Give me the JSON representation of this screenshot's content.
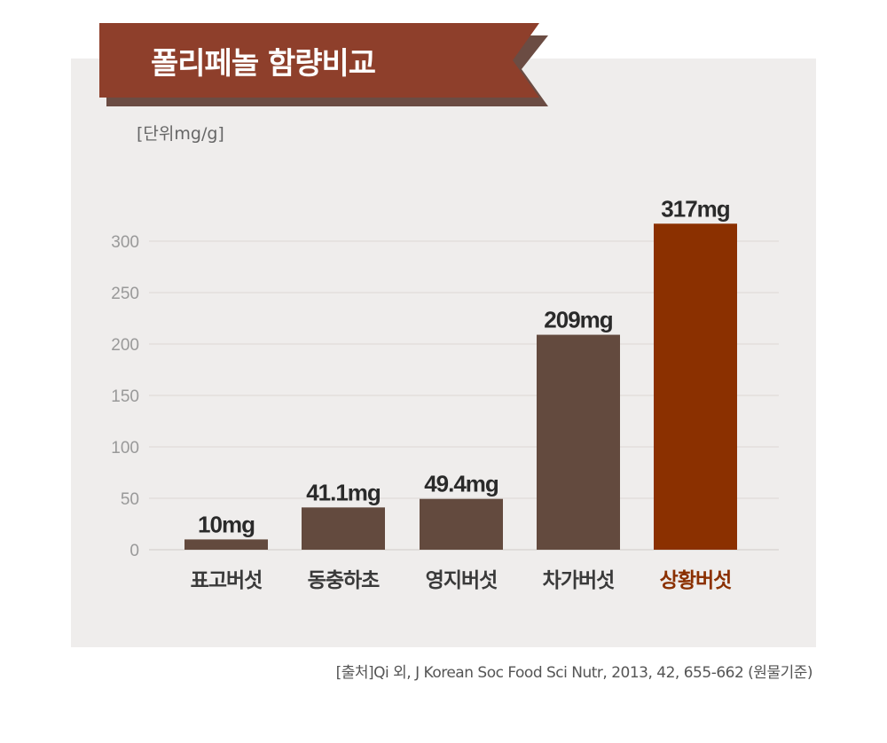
{
  "header": {
    "title": "폴리페놀 함량비교"
  },
  "unit_label": "[단위mg/g]",
  "source": "[출처]Qi 외, J Korean Soc Food Sci Nutr, 2013, 42, 655-662 (원물기준)",
  "colors": {
    "banner": "#8e3f2b",
    "banner_shadow": "#6b4c43",
    "bar": "#634a3e",
    "bar_highlight": "#8b3000",
    "highlight_label": "#8b3000"
  },
  "chart_data": {
    "type": "bar",
    "categories": [
      "표고버섯",
      "동충하초",
      "영지버섯",
      "차가버섯",
      "상황버섯"
    ],
    "values": [
      10,
      41.1,
      49.4,
      209,
      317
    ],
    "value_labels": [
      "10mg",
      "41.1mg",
      "49.4mg",
      "209mg",
      "317mg"
    ],
    "highlight_index": 4,
    "yticks": [
      0,
      50,
      100,
      150,
      200,
      250,
      300
    ],
    "ylim": [
      0,
      300
    ],
    "grid": true
  }
}
